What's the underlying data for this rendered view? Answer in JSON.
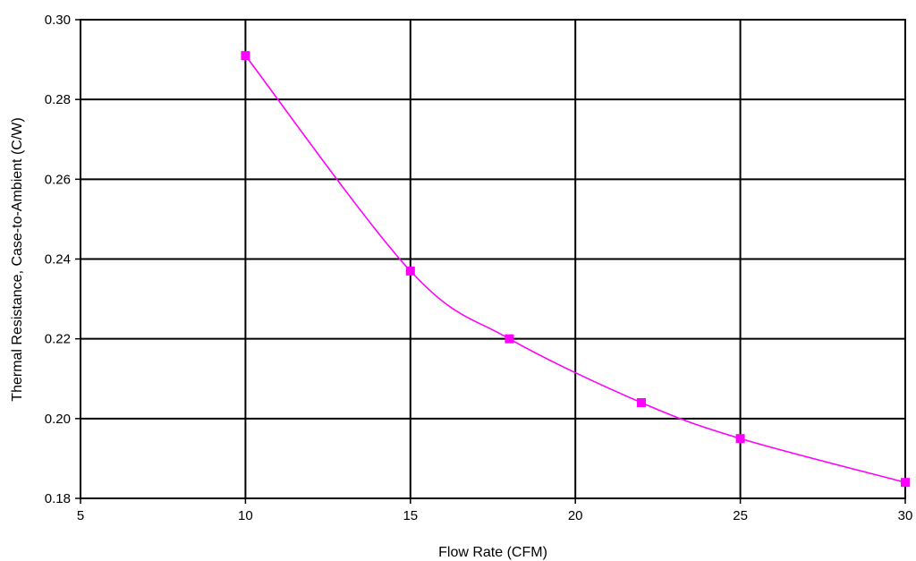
{
  "chart_data": {
    "type": "line",
    "title": "",
    "xlabel": "Flow Rate (CFM)",
    "ylabel": "Thermal Resistance, Case-to-Ambient (C/W)",
    "xlim": [
      5,
      30
    ],
    "ylim": [
      0.18,
      0.3
    ],
    "x_ticks": [
      "5",
      "10",
      "15",
      "20",
      "25",
      "30"
    ],
    "y_ticks": [
      "0.18",
      "0.20",
      "0.22",
      "0.24",
      "0.26",
      "0.28",
      "0.30"
    ],
    "grid": true,
    "legend": "none",
    "series": [
      {
        "color": "#ff00ff",
        "marker": "square",
        "smooth": true,
        "x": [
          10,
          15,
          18,
          22,
          25,
          30
        ],
        "y": [
          0.291,
          0.237,
          0.22,
          0.204,
          0.195,
          0.184
        ]
      }
    ]
  }
}
